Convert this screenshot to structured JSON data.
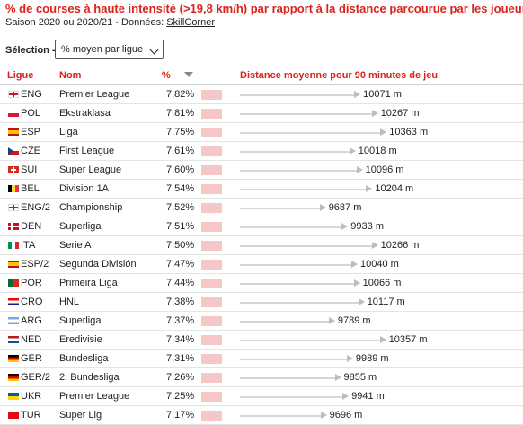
{
  "header": {
    "title": "% de courses à haute intensité (>19,8 km/h) par rapport à la distance parcourue par les joueurs",
    "subtitle_prefix": "Saison 2020 ou 2020/21 - Données: ",
    "subtitle_link": "SkillCorner"
  },
  "selection": {
    "label": "Sélection ->",
    "value": "% moyen par ligue"
  },
  "columns": {
    "league": "Ligue",
    "name": "Nom",
    "pct": "%",
    "distance": "Distance moyenne pour 90 minutes de jeu"
  },
  "colors": {
    "accent": "#d9231d",
    "pct_bar": "#f3c8c6",
    "dist_line": "#d6d6d6",
    "dist_arrow": "#bdbdbd"
  },
  "rows": [
    {
      "flag": "flag-england-icon",
      "code": "ENG",
      "name": "Premier League",
      "pct": "7.82%",
      "distance": "10071 m",
      "distance_m": 10071
    },
    {
      "flag": "flag-poland-icon",
      "code": "POL",
      "name": "Ekstraklasa",
      "pct": "7.81%",
      "distance": "10267 m",
      "distance_m": 10267
    },
    {
      "flag": "flag-spain-icon",
      "code": "ESP",
      "name": "Liga",
      "pct": "7.75%",
      "distance": "10363 m",
      "distance_m": 10363
    },
    {
      "flag": "flag-czechia-icon",
      "code": "CZE",
      "name": "First League",
      "pct": "7.61%",
      "distance": "10018 m",
      "distance_m": 10018
    },
    {
      "flag": "flag-switzerland-icon",
      "code": "SUI",
      "name": "Super League",
      "pct": "7.60%",
      "distance": "10096 m",
      "distance_m": 10096
    },
    {
      "flag": "flag-belgium-icon",
      "code": "BEL",
      "name": "Division 1A",
      "pct": "7.54%",
      "distance": "10204 m",
      "distance_m": 10204
    },
    {
      "flag": "flag-england-icon",
      "code": "ENG/2",
      "name": "Championship",
      "pct": "7.52%",
      "distance": "9687 m",
      "distance_m": 9687
    },
    {
      "flag": "flag-denmark-icon",
      "code": "DEN",
      "name": "Superliga",
      "pct": "7.51%",
      "distance": "9933 m",
      "distance_m": 9933
    },
    {
      "flag": "flag-italy-icon",
      "code": "ITA",
      "name": "Serie A",
      "pct": "7.50%",
      "distance": "10266 m",
      "distance_m": 10266
    },
    {
      "flag": "flag-spain-icon",
      "code": "ESP/2",
      "name": "Segunda División",
      "pct": "7.47%",
      "distance": "10040 m",
      "distance_m": 10040
    },
    {
      "flag": "flag-portugal-icon",
      "code": "POR",
      "name": "Primeira Liga",
      "pct": "7.44%",
      "distance": "10066 m",
      "distance_m": 10066
    },
    {
      "flag": "flag-croatia-icon",
      "code": "CRO",
      "name": "HNL",
      "pct": "7.38%",
      "distance": "10117 m",
      "distance_m": 10117
    },
    {
      "flag": "flag-argentina-icon",
      "code": "ARG",
      "name": "Superliga",
      "pct": "7.37%",
      "distance": "9789 m",
      "distance_m": 9789
    },
    {
      "flag": "flag-netherlands-icon",
      "code": "NED",
      "name": "Eredivisie",
      "pct": "7.34%",
      "distance": "10357 m",
      "distance_m": 10357
    },
    {
      "flag": "flag-germany-icon",
      "code": "GER",
      "name": "Bundesliga",
      "pct": "7.31%",
      "distance": "9989 m",
      "distance_m": 9989
    },
    {
      "flag": "flag-germany-icon",
      "code": "GER/2",
      "name": "2. Bundesliga",
      "pct": "7.26%",
      "distance": "9855 m",
      "distance_m": 9855
    },
    {
      "flag": "flag-ukraine-icon",
      "code": "UKR",
      "name": "Premier League",
      "pct": "7.25%",
      "distance": "9941 m",
      "distance_m": 9941
    },
    {
      "flag": "flag-turkey-icon",
      "code": "TUR",
      "name": "Super Lig",
      "pct": "7.17%",
      "distance": "9696 m",
      "distance_m": 9696
    }
  ]
}
